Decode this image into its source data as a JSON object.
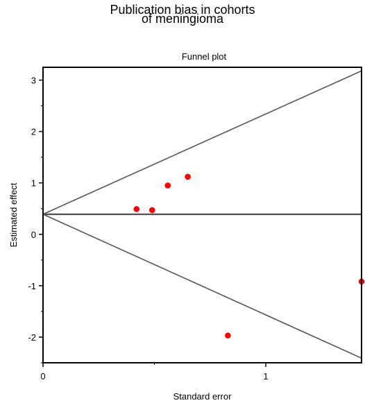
{
  "chart_data": {
    "type": "scatter",
    "title_lines": [
      "Publication bias in cohorts",
      "of meningioma"
    ],
    "subtitle": "Funnel plot",
    "xlabel": "Standard error",
    "ylabel": "Estimated effect",
    "xlim": [
      0,
      1.43
    ],
    "ylim": [
      -2.5,
      3.25
    ],
    "xticks": [
      0,
      1
    ],
    "yticks": [
      3,
      2,
      1,
      0,
      -1,
      -2
    ],
    "grid": false,
    "series": [
      {
        "points": [
          {
            "x": 0.42,
            "y": 0.49
          },
          {
            "x": 0.49,
            "y": 0.47
          },
          {
            "x": 0.56,
            "y": 0.95
          },
          {
            "x": 0.65,
            "y": 1.12
          },
          {
            "x": 0.83,
            "y": -1.97
          },
          {
            "x": 1.43,
            "y": -0.92
          }
        ]
      }
    ],
    "pooled_estimate": 0.39,
    "funnel_upper": [
      {
        "x": 0,
        "y": 0.39
      },
      {
        "x": 1.43,
        "y": 3.18
      }
    ],
    "funnel_lower": [
      {
        "x": 0,
        "y": 0.39
      },
      {
        "x": 1.43,
        "y": -2.41
      }
    ],
    "colors": {
      "points": "#ff0000",
      "lines": "#555555",
      "frame": "#000000"
    }
  }
}
